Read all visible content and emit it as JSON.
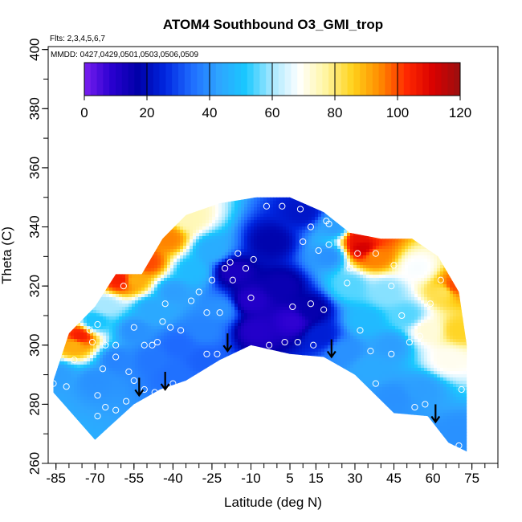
{
  "chart_data": {
    "type": "heatmap",
    "title": "ATOM4 Southbound O3_GMI_trop",
    "flights_note": "Flts: 2,3,4,5,6,7",
    "dates_note": "MMDD: 0427,0429,0501,0503,0506,0509",
    "xlabel": "Latitude (deg N)",
    "ylabel": "Theta (C)",
    "xlim": [
      -88,
      85
    ],
    "ylim": [
      260,
      401
    ],
    "x_ticks": [
      -85,
      -70,
      -55,
      -40,
      -25,
      -10,
      5,
      15,
      30,
      45,
      60,
      75
    ],
    "y_ticks": [
      260,
      280,
      300,
      320,
      340,
      360,
      380,
      400
    ],
    "colorbar": {
      "min": 0,
      "max": 120,
      "ticks": [
        0,
        20,
        40,
        60,
        80,
        100,
        120
      ],
      "colors": [
        "#7a1ff0",
        "#2a00d0",
        "#0000a8",
        "#0026e0",
        "#1f6cff",
        "#2ea4ff",
        "#19c8ff",
        "#a8e8ff",
        "#ffffff",
        "#fff5a0",
        "#ffd21a",
        "#ff8c00",
        "#ff2800",
        "#d80000",
        "#9a1010"
      ]
    },
    "domain_upper": [
      [
        -86,
        288
      ],
      [
        -80,
        304
      ],
      [
        -70,
        313
      ],
      [
        -62,
        324
      ],
      [
        -52,
        324
      ],
      [
        -44,
        336
      ],
      [
        -35,
        344
      ],
      [
        -22,
        348
      ],
      [
        -8,
        350
      ],
      [
        5,
        350
      ],
      [
        18,
        345
      ],
      [
        28,
        338
      ],
      [
        40,
        336
      ],
      [
        52,
        336
      ],
      [
        62,
        330
      ],
      [
        70,
        318
      ],
      [
        73,
        300
      ]
    ],
    "domain_lower": [
      [
        73,
        264
      ],
      [
        66,
        267
      ],
      [
        58,
        276
      ],
      [
        45,
        277
      ],
      [
        30,
        290
      ],
      [
        18,
        296
      ],
      [
        5,
        297
      ],
      [
        -10,
        300
      ],
      [
        -22,
        295
      ],
      [
        -35,
        288
      ],
      [
        -45,
        285
      ],
      [
        -55,
        280
      ],
      [
        -65,
        272
      ],
      [
        -70,
        268
      ],
      [
        -72,
        270
      ],
      [
        -80,
        278
      ],
      [
        -86,
        284
      ]
    ],
    "field_points": [
      {
        "lat": -84,
        "theta": 290,
        "o3": 42
      },
      {
        "lat": -78,
        "theta": 300,
        "o3": 90
      },
      {
        "lat": -76,
        "theta": 303,
        "o3": 105
      },
      {
        "lat": -70,
        "theta": 308,
        "o3": 50
      },
      {
        "lat": -66,
        "theta": 313,
        "o3": 60
      },
      {
        "lat": -60,
        "theta": 322,
        "o3": 105
      },
      {
        "lat": -55,
        "theta": 322,
        "o3": 90
      },
      {
        "lat": -50,
        "theta": 328,
        "o3": 100
      },
      {
        "lat": -42,
        "theta": 336,
        "o3": 95
      },
      {
        "lat": -34,
        "theta": 343,
        "o3": 75
      },
      {
        "lat": -70,
        "theta": 288,
        "o3": 40
      },
      {
        "lat": -62,
        "theta": 295,
        "o3": 38
      },
      {
        "lat": -55,
        "theta": 305,
        "o3": 40
      },
      {
        "lat": -48,
        "theta": 312,
        "o3": 44
      },
      {
        "lat": -40,
        "theta": 318,
        "o3": 42
      },
      {
        "lat": -32,
        "theta": 325,
        "o3": 48
      },
      {
        "lat": -25,
        "theta": 332,
        "o3": 45
      },
      {
        "lat": -48,
        "theta": 295,
        "o3": 36
      },
      {
        "lat": -38,
        "theta": 300,
        "o3": 34
      },
      {
        "lat": -28,
        "theta": 305,
        "o3": 38
      },
      {
        "lat": -22,
        "theta": 312,
        "o3": 40
      },
      {
        "lat": -40,
        "theta": 290,
        "o3": 35
      },
      {
        "lat": -28,
        "theta": 295,
        "o3": 33
      },
      {
        "lat": -17,
        "theta": 325,
        "o3": 12
      },
      {
        "lat": -10,
        "theta": 315,
        "o3": 10
      },
      {
        "lat": -8,
        "theta": 305,
        "o3": 10
      },
      {
        "lat": -2,
        "theta": 335,
        "o3": 18
      },
      {
        "lat": 2,
        "theta": 320,
        "o3": 15
      },
      {
        "lat": 6,
        "theta": 308,
        "o3": 8
      },
      {
        "lat": 10,
        "theta": 345,
        "o3": 22
      },
      {
        "lat": 13,
        "theta": 312,
        "o3": 16
      },
      {
        "lat": 17,
        "theta": 303,
        "o3": 24
      },
      {
        "lat": 20,
        "theta": 330,
        "o3": 40
      },
      {
        "lat": 22,
        "theta": 340,
        "o3": 42
      },
      {
        "lat": 28,
        "theta": 320,
        "o3": 55
      },
      {
        "lat": 33,
        "theta": 333,
        "o3": 112
      },
      {
        "lat": 38,
        "theta": 339,
        "o3": 100
      },
      {
        "lat": 32,
        "theta": 336,
        "o3": 108
      },
      {
        "lat": 38,
        "theta": 330,
        "o3": 95
      },
      {
        "lat": 34,
        "theta": 308,
        "o3": 48
      },
      {
        "lat": 42,
        "theta": 318,
        "o3": 58
      },
      {
        "lat": 44,
        "theta": 300,
        "o3": 42
      },
      {
        "lat": 50,
        "theta": 310,
        "o3": 55
      },
      {
        "lat": 54,
        "theta": 326,
        "o3": 68
      },
      {
        "lat": 58,
        "theta": 305,
        "o3": 72
      },
      {
        "lat": 64,
        "theta": 318,
        "o3": 82
      },
      {
        "lat": 68,
        "theta": 320,
        "o3": 100
      },
      {
        "lat": 70,
        "theta": 305,
        "o3": 85
      },
      {
        "lat": 66,
        "theta": 295,
        "o3": 70
      },
      {
        "lat": 56,
        "theta": 285,
        "o3": 42
      },
      {
        "lat": 45,
        "theta": 282,
        "o3": 40
      },
      {
        "lat": 36,
        "theta": 292,
        "o3": 44
      },
      {
        "lat": 26,
        "theta": 298,
        "o3": 40
      },
      {
        "lat": 70,
        "theta": 270,
        "o3": 40
      }
    ],
    "obs_points": [
      [
        -86,
        287
      ],
      [
        -81,
        286
      ],
      [
        -78,
        295
      ],
      [
        -72,
        305
      ],
      [
        -71,
        301
      ],
      [
        -69,
        307
      ],
      [
        -66,
        300
      ],
      [
        -62,
        300
      ],
      [
        -59,
        320
      ],
      [
        -55,
        306
      ],
      [
        -51,
        300
      ],
      [
        -48,
        300
      ],
      [
        -46,
        301
      ],
      [
        -44,
        308
      ],
      [
        -43,
        314
      ],
      [
        -41,
        306
      ],
      [
        -37,
        305
      ],
      [
        -33,
        315
      ],
      [
        -30,
        318
      ],
      [
        -27,
        311
      ],
      [
        -25,
        322
      ],
      [
        -22,
        311
      ],
      [
        -20,
        326
      ],
      [
        -18,
        328
      ],
      [
        -15,
        331
      ],
      [
        -12,
        326
      ],
      [
        -10,
        316
      ],
      [
        -67,
        292
      ],
      [
        -62,
        296
      ],
      [
        -57,
        291
      ],
      [
        -55,
        288
      ],
      [
        -51,
        285
      ],
      [
        -47,
        284
      ],
      [
        -40,
        287
      ],
      [
        -32,
        288
      ],
      [
        -27,
        297
      ],
      [
        -23,
        297
      ],
      [
        -69,
        283
      ],
      [
        -66,
        279
      ],
      [
        -69,
        276
      ],
      [
        -65,
        268
      ],
      [
        -62,
        278
      ],
      [
        -58,
        281
      ],
      [
        -17,
        322
      ],
      [
        -9,
        329
      ],
      [
        -4,
        347
      ],
      [
        2,
        347
      ],
      [
        9,
        346
      ],
      [
        10,
        335
      ],
      [
        13,
        340
      ],
      [
        16,
        332
      ],
      [
        20,
        334
      ],
      [
        19,
        342
      ],
      [
        20,
        341
      ],
      [
        3,
        301
      ],
      [
        8,
        301
      ],
      [
        14,
        300
      ],
      [
        6,
        313
      ],
      [
        13,
        314
      ],
      [
        18,
        312
      ],
      [
        27,
        321
      ],
      [
        28,
        326
      ],
      [
        31,
        331
      ],
      [
        34,
        339
      ],
      [
        38,
        331
      ],
      [
        45,
        327
      ],
      [
        44,
        320
      ],
      [
        48,
        310
      ],
      [
        55,
        303
      ],
      [
        59,
        314
      ],
      [
        63,
        322
      ],
      [
        32,
        305
      ],
      [
        36,
        298
      ],
      [
        44,
        297
      ],
      [
        51,
        301
      ],
      [
        38,
        287
      ],
      [
        53,
        279
      ],
      [
        57,
        280
      ],
      [
        71,
        285
      ],
      [
        -3,
        300
      ],
      [
        70,
        266
      ]
    ],
    "arrows": [
      {
        "lat": -53,
        "theta": 283
      },
      {
        "lat": -43,
        "theta": 285
      },
      {
        "lat": -19,
        "theta": 298
      },
      {
        "lat": 21,
        "theta": 296
      },
      {
        "lat": 61,
        "theta": 274
      }
    ]
  }
}
